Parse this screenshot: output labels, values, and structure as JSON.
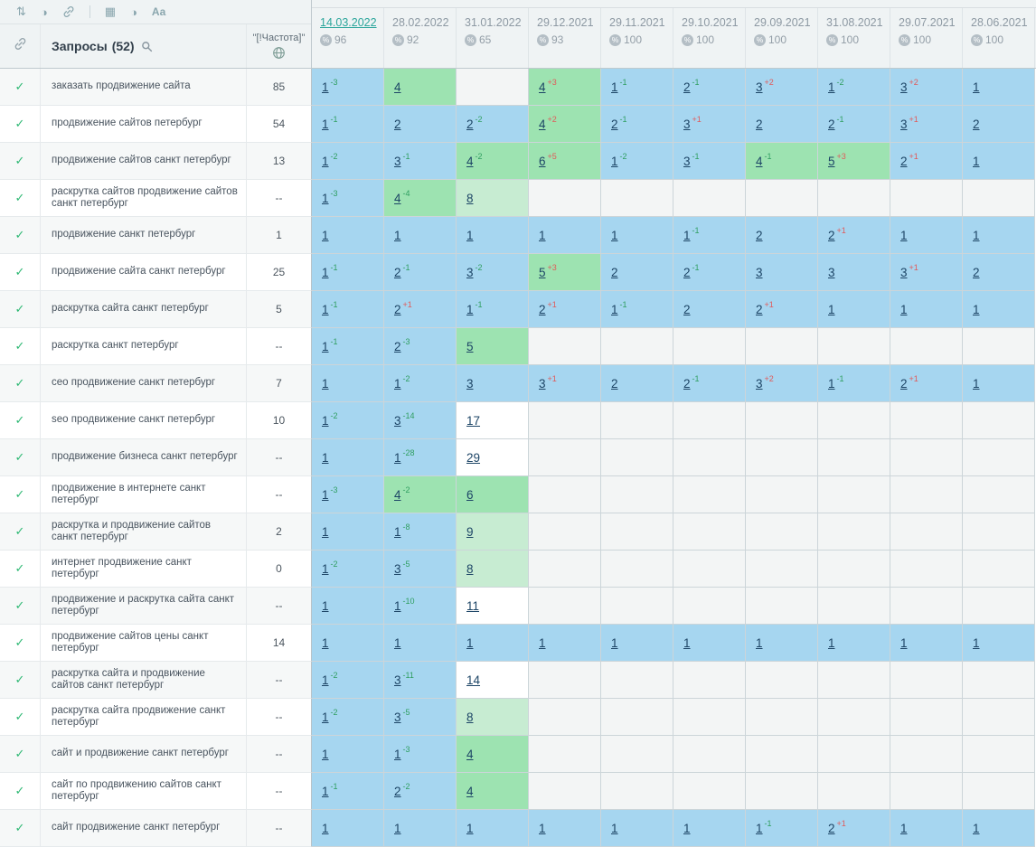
{
  "toolbar": {
    "icons": [
      {
        "name": "sort-icon",
        "glyph": "⇅"
      },
      {
        "name": "contrast-icon",
        "glyph": "◑"
      },
      {
        "name": "link-icon",
        "svg": "link"
      },
      {
        "name": "divider",
        "divider": true
      },
      {
        "name": "calculator-icon",
        "glyph": "▦"
      },
      {
        "name": "theme-icon",
        "glyph": "◑"
      },
      {
        "name": "font-case-icon",
        "glyph": "Aa"
      }
    ]
  },
  "table": {
    "queries_header": "Запросы",
    "queries_count": "(52)",
    "frequency_header": "\"[!Частота]\"",
    "dates": [
      {
        "label": "14.03.2022",
        "score": "96",
        "active": true
      },
      {
        "label": "28.02.2022",
        "score": "92",
        "active": false
      },
      {
        "label": "31.01.2022",
        "score": "65",
        "active": false
      },
      {
        "label": "29.12.2021",
        "score": "93",
        "active": false
      },
      {
        "label": "29.11.2021",
        "score": "100",
        "active": false
      },
      {
        "label": "29.10.2021",
        "score": "100",
        "active": false
      },
      {
        "label": "29.09.2021",
        "score": "100",
        "active": false
      },
      {
        "label": "31.08.2021",
        "score": "100",
        "active": false
      },
      {
        "label": "29.07.2021",
        "score": "100",
        "active": false
      },
      {
        "label": "28.06.2021",
        "score": "100",
        "active": false
      }
    ],
    "rows": [
      {
        "query": "заказать продвижение сайта",
        "frequency": "85",
        "positions": [
          {
            "value": "1",
            "delta": "-3"
          },
          {
            "value": "4"
          },
          {},
          {
            "value": "4",
            "delta": "+3"
          },
          {
            "value": "1",
            "delta": "-1"
          },
          {
            "value": "2",
            "delta": "-1"
          },
          {
            "value": "3",
            "delta": "+2"
          },
          {
            "value": "1",
            "delta": "-2"
          },
          {
            "value": "3",
            "delta": "+2"
          },
          {
            "value": "1"
          }
        ]
      },
      {
        "query": "продвижение сайтов петербург",
        "frequency": "54",
        "positions": [
          {
            "value": "1",
            "delta": "-1"
          },
          {
            "value": "2"
          },
          {
            "value": "2",
            "delta": "-2"
          },
          {
            "value": "4",
            "delta": "+2"
          },
          {
            "value": "2",
            "delta": "-1"
          },
          {
            "value": "3",
            "delta": "+1"
          },
          {
            "value": "2"
          },
          {
            "value": "2",
            "delta": "-1"
          },
          {
            "value": "3",
            "delta": "+1"
          },
          {
            "value": "2"
          }
        ]
      },
      {
        "query": "продвижение сайтов санкт петербург",
        "frequency": "13",
        "positions": [
          {
            "value": "1",
            "delta": "-2"
          },
          {
            "value": "3",
            "delta": "-1"
          },
          {
            "value": "4",
            "delta": "-2"
          },
          {
            "value": "6",
            "delta": "+5"
          },
          {
            "value": "1",
            "delta": "-2"
          },
          {
            "value": "3",
            "delta": "-1"
          },
          {
            "value": "4",
            "delta": "-1"
          },
          {
            "value": "5",
            "delta": "+3"
          },
          {
            "value": "2",
            "delta": "+1"
          },
          {
            "value": "1"
          }
        ]
      },
      {
        "query": "раскрутка сайтов продвижение сайтов санкт петербург",
        "frequency": "--",
        "positions": [
          {
            "value": "1",
            "delta": "-3"
          },
          {
            "value": "4",
            "delta": "-4"
          },
          {
            "value": "8"
          },
          {},
          {},
          {},
          {},
          {},
          {},
          {}
        ]
      },
      {
        "query": "продвижение санкт петербург",
        "frequency": "1",
        "positions": [
          {
            "value": "1"
          },
          {
            "value": "1"
          },
          {
            "value": "1"
          },
          {
            "value": "1"
          },
          {
            "value": "1"
          },
          {
            "value": "1",
            "delta": "-1"
          },
          {
            "value": "2"
          },
          {
            "value": "2",
            "delta": "+1"
          },
          {
            "value": "1"
          },
          {
            "value": "1"
          }
        ]
      },
      {
        "query": "продвижение сайта санкт петербург",
        "frequency": "25",
        "positions": [
          {
            "value": "1",
            "delta": "-1"
          },
          {
            "value": "2",
            "delta": "-1"
          },
          {
            "value": "3",
            "delta": "-2"
          },
          {
            "value": "5",
            "delta": "+3"
          },
          {
            "value": "2"
          },
          {
            "value": "2",
            "delta": "-1"
          },
          {
            "value": "3"
          },
          {
            "value": "3"
          },
          {
            "value": "3",
            "delta": "+1"
          },
          {
            "value": "2"
          }
        ]
      },
      {
        "query": "раскрутка сайта санкт петербург",
        "frequency": "5",
        "positions": [
          {
            "value": "1",
            "delta": "-1"
          },
          {
            "value": "2",
            "delta": "+1"
          },
          {
            "value": "1",
            "delta": "-1"
          },
          {
            "value": "2",
            "delta": "+1"
          },
          {
            "value": "1",
            "delta": "-1"
          },
          {
            "value": "2"
          },
          {
            "value": "2",
            "delta": "+1"
          },
          {
            "value": "1"
          },
          {
            "value": "1"
          },
          {
            "value": "1"
          }
        ]
      },
      {
        "query": "раскрутка санкт петербург",
        "frequency": "--",
        "positions": [
          {
            "value": "1",
            "delta": "-1"
          },
          {
            "value": "2",
            "delta": "-3"
          },
          {
            "value": "5"
          },
          {},
          {},
          {},
          {},
          {},
          {},
          {}
        ]
      },
      {
        "query": "сео продвижение санкт петербург",
        "frequency": "7",
        "positions": [
          {
            "value": "1"
          },
          {
            "value": "1",
            "delta": "-2"
          },
          {
            "value": "3"
          },
          {
            "value": "3",
            "delta": "+1"
          },
          {
            "value": "2"
          },
          {
            "value": "2",
            "delta": "-1"
          },
          {
            "value": "3",
            "delta": "+2"
          },
          {
            "value": "1",
            "delta": "-1"
          },
          {
            "value": "2",
            "delta": "+1"
          },
          {
            "value": "1"
          }
        ]
      },
      {
        "query": "seo продвижение санкт петербург",
        "frequency": "10",
        "positions": [
          {
            "value": "1",
            "delta": "-2"
          },
          {
            "value": "3",
            "delta": "-14"
          },
          {
            "value": "17"
          },
          {},
          {},
          {},
          {},
          {},
          {},
          {}
        ]
      },
      {
        "query": "продвижение бизнеса санкт петербург",
        "frequency": "--",
        "positions": [
          {
            "value": "1"
          },
          {
            "value": "1",
            "delta": "-28"
          },
          {
            "value": "29"
          },
          {},
          {},
          {},
          {},
          {},
          {},
          {}
        ]
      },
      {
        "query": "продвижение в интернете санкт петербург",
        "frequency": "--",
        "positions": [
          {
            "value": "1",
            "delta": "-3"
          },
          {
            "value": "4",
            "delta": "-2"
          },
          {
            "value": "6"
          },
          {},
          {},
          {},
          {},
          {},
          {},
          {}
        ]
      },
      {
        "query": "раскрутка и продвижение сайтов санкт петербург",
        "frequency": "2",
        "positions": [
          {
            "value": "1"
          },
          {
            "value": "1",
            "delta": "-8"
          },
          {
            "value": "9"
          },
          {},
          {},
          {},
          {},
          {},
          {},
          {}
        ]
      },
      {
        "query": "интернет продвижение санкт петербург",
        "frequency": "0",
        "positions": [
          {
            "value": "1",
            "delta": "-2"
          },
          {
            "value": "3",
            "delta": "-5"
          },
          {
            "value": "8"
          },
          {},
          {},
          {},
          {},
          {},
          {},
          {}
        ]
      },
      {
        "query": "продвижение и раскрутка сайта санкт петербург",
        "frequency": "--",
        "positions": [
          {
            "value": "1"
          },
          {
            "value": "1",
            "delta": "-10"
          },
          {
            "value": "11"
          },
          {},
          {},
          {},
          {},
          {},
          {},
          {}
        ]
      },
      {
        "query": "продвижение сайтов цены санкт петербург",
        "frequency": "14",
        "positions": [
          {
            "value": "1"
          },
          {
            "value": "1"
          },
          {
            "value": "1"
          },
          {
            "value": "1"
          },
          {
            "value": "1"
          },
          {
            "value": "1"
          },
          {
            "value": "1"
          },
          {
            "value": "1"
          },
          {
            "value": "1"
          },
          {
            "value": "1"
          }
        ]
      },
      {
        "query": "раскрутка сайта и продвижение сайтов санкт петербург",
        "frequency": "--",
        "positions": [
          {
            "value": "1",
            "delta": "-2"
          },
          {
            "value": "3",
            "delta": "-11"
          },
          {
            "value": "14"
          },
          {},
          {},
          {},
          {},
          {},
          {},
          {}
        ]
      },
      {
        "query": "раскрутка сайта продвижение санкт петербург",
        "frequency": "--",
        "positions": [
          {
            "value": "1",
            "delta": "-2"
          },
          {
            "value": "3",
            "delta": "-5"
          },
          {
            "value": "8"
          },
          {},
          {},
          {},
          {},
          {},
          {},
          {}
        ]
      },
      {
        "query": "сайт и продвижение санкт петербург",
        "frequency": "--",
        "positions": [
          {
            "value": "1"
          },
          {
            "value": "1",
            "delta": "-3"
          },
          {
            "value": "4"
          },
          {},
          {},
          {},
          {},
          {},
          {},
          {}
        ]
      },
      {
        "query": "сайт по продвижению сайтов санкт петербург",
        "frequency": "--",
        "positions": [
          {
            "value": "1",
            "delta": "-1"
          },
          {
            "value": "2",
            "delta": "-2"
          },
          {
            "value": "4"
          },
          {},
          {},
          {},
          {},
          {},
          {},
          {}
        ]
      },
      {
        "query": "сайт продвижение санкт петербург",
        "frequency": "--",
        "positions": [
          {
            "value": "1"
          },
          {
            "value": "1"
          },
          {
            "value": "1"
          },
          {
            "value": "1"
          },
          {
            "value": "1"
          },
          {
            "value": "1"
          },
          {
            "value": "1",
            "delta": "-1"
          },
          {
            "value": "2",
            "delta": "+1"
          },
          {
            "value": "1"
          },
          {
            "value": "1"
          }
        ]
      }
    ]
  },
  "colors": {
    "top3_cell": "#a6d6f0",
    "top7_cell": "#9de3b1",
    "top10_cell": "#c7ecd2",
    "improve_delta": "#2f9e60",
    "decline_delta": "#e15a5a",
    "active_date": "#2ba59b",
    "checkmark": "#2db873"
  }
}
